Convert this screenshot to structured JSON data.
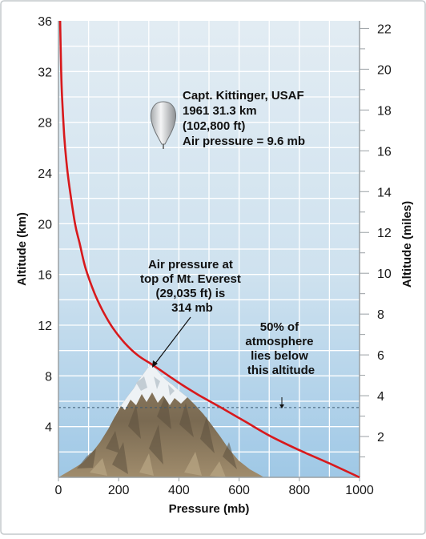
{
  "chart_data": {
    "type": "line",
    "xlabel": "Pressure (mb)",
    "ylabel": "Altitude (km)",
    "y2label": "Altitude (miles)",
    "xlim": [
      0,
      1000
    ],
    "ylim": [
      0,
      36
    ],
    "y2lim": [
      0,
      22.37
    ],
    "xticks": [
      "0",
      "200",
      "400",
      "600",
      "800",
      "1000"
    ],
    "yticks": [
      "4",
      "8",
      "12",
      "16",
      "20",
      "24",
      "28",
      "32",
      "36"
    ],
    "y2ticks": [
      "2",
      "4",
      "6",
      "8",
      "10",
      "12",
      "14",
      "16",
      "18",
      "20",
      "22"
    ],
    "grid": true,
    "series": [
      {
        "color": "#d8191c",
        "x": [
          5.6,
          9,
          12,
          19,
          26,
          36,
          55,
          70,
          90,
          120,
          150,
          180,
          220,
          265,
          314,
          360,
          410,
          465,
          540,
          620,
          700,
          795,
          900,
          1000
        ],
        "y": [
          36,
          32,
          30,
          27,
          25,
          23,
          20,
          18.5,
          16.5,
          14.5,
          13,
          11.8,
          10.6,
          9.6,
          8.85,
          8.1,
          7.3,
          6.5,
          5.5,
          4.4,
          3.3,
          2.2,
          1.1,
          0
        ]
      }
    ],
    "reference_line": {
      "y": 5.5,
      "style": "dashed"
    },
    "annotations": {
      "kittinger": [
        "Capt. Kittinger, USAF",
        "1961 31.3 km",
        "(102,800 ft)",
        "Air pressure = 9.6 mb"
      ],
      "everest": [
        "Air pressure at",
        "top of Mt. Everest",
        "(29,035 ft) is",
        "314 mb"
      ],
      "half_atmosphere": [
        "50% of",
        "atmosphere",
        "lies below",
        "this altitude"
      ]
    }
  },
  "colors": {
    "curve": "#d8191c",
    "sky_top": "#dfeaf2",
    "sky_bottom": "#a9cee8",
    "grid": "#ffffff",
    "frame": "#9aa0a4"
  },
  "icons": [
    "balloon-icon",
    "mountain-illustration"
  ]
}
